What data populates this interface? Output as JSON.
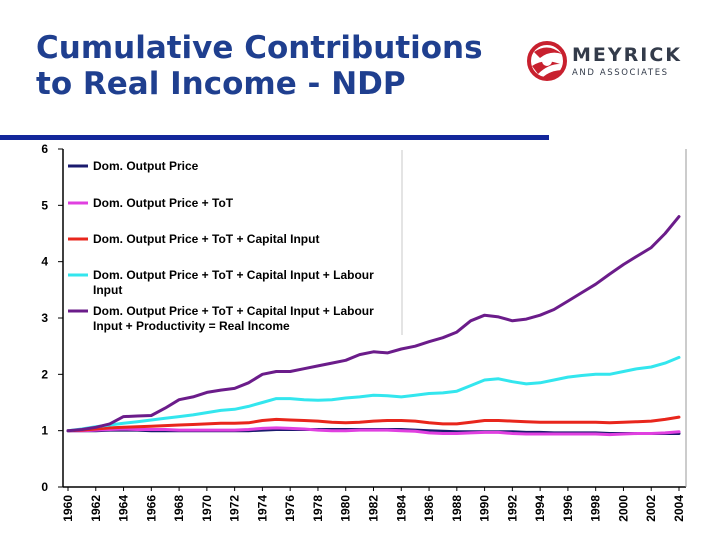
{
  "slide": {
    "title_line1": "Cumulative Contributions",
    "title_line2": "to Real Income - NDP"
  },
  "logo": {
    "name": "MEYRICK",
    "sub": "AND ASSOCIATES",
    "icon": "globe-swirl-icon",
    "accent": "#c8202e"
  },
  "chart_data": {
    "type": "line",
    "title": "",
    "xlabel": "",
    "ylabel": "",
    "ylim": [
      0,
      6
    ],
    "yticks": [
      0,
      1,
      2,
      3,
      4,
      5,
      6
    ],
    "xlim": [
      1960,
      2004
    ],
    "xticks": [
      "1960",
      "1962",
      "1964",
      "1966",
      "1968",
      "1970",
      "1972",
      "1974",
      "1976",
      "1978",
      "1980",
      "1982",
      "1984",
      "1986",
      "1988",
      "1990",
      "1992",
      "1994",
      "1996",
      "1998",
      "2000",
      "2002",
      "2004"
    ],
    "legend_position": "top-left",
    "grid": false,
    "x": [
      1960,
      1961,
      1962,
      1963,
      1964,
      1965,
      1966,
      1967,
      1968,
      1969,
      1970,
      1971,
      1972,
      1973,
      1974,
      1975,
      1976,
      1977,
      1978,
      1979,
      1980,
      1981,
      1982,
      1983,
      1984,
      1985,
      1986,
      1987,
      1988,
      1989,
      1990,
      1991,
      1992,
      1993,
      1994,
      1995,
      1996,
      1997,
      1998,
      1999,
      2000,
      2001,
      2002,
      2003,
      2004
    ],
    "series": [
      {
        "name": "Dom. Output Price",
        "color": "#1a1a6e",
        "values": [
          1.0,
          1.0,
          1.0,
          1.01,
          1.01,
          1.01,
          1.0,
          1.0,
          1.0,
          1.0,
          1.0,
          1.0,
          1.0,
          1.0,
          1.01,
          1.02,
          1.02,
          1.02,
          1.02,
          1.02,
          1.02,
          1.02,
          1.02,
          1.02,
          1.02,
          1.01,
          1.0,
          0.99,
          0.98,
          0.98,
          0.98,
          0.98,
          0.98,
          0.97,
          0.97,
          0.96,
          0.96,
          0.96,
          0.96,
          0.95,
          0.95,
          0.95,
          0.95,
          0.95,
          0.95
        ]
      },
      {
        "name": "Dom. Output Price + ToT",
        "color": "#e040e0",
        "values": [
          1.0,
          1.0,
          1.01,
          1.02,
          1.03,
          1.02,
          1.02,
          1.02,
          1.01,
          1.01,
          1.01,
          1.01,
          1.01,
          1.02,
          1.04,
          1.05,
          1.04,
          1.03,
          1.01,
          1.0,
          1.0,
          1.01,
          1.01,
          1.01,
          1.0,
          0.99,
          0.96,
          0.95,
          0.95,
          0.96,
          0.97,
          0.97,
          0.95,
          0.94,
          0.94,
          0.94,
          0.94,
          0.94,
          0.94,
          0.93,
          0.94,
          0.95,
          0.95,
          0.96,
          0.98
        ]
      },
      {
        "name": "Dom. Output Price + ToT + Capital Input",
        "color": "#e8261c",
        "values": [
          1.0,
          1.01,
          1.03,
          1.05,
          1.06,
          1.07,
          1.08,
          1.09,
          1.1,
          1.11,
          1.12,
          1.13,
          1.13,
          1.14,
          1.18,
          1.2,
          1.19,
          1.18,
          1.17,
          1.15,
          1.14,
          1.15,
          1.17,
          1.18,
          1.18,
          1.17,
          1.14,
          1.12,
          1.12,
          1.15,
          1.18,
          1.18,
          1.17,
          1.16,
          1.15,
          1.15,
          1.15,
          1.15,
          1.15,
          1.14,
          1.15,
          1.16,
          1.17,
          1.2,
          1.24
        ]
      },
      {
        "name": "Dom. Output Price + ToT + Capital Input + Labour Input",
        "color": "#33e6ee",
        "values": [
          1.0,
          1.03,
          1.07,
          1.1,
          1.13,
          1.16,
          1.19,
          1.22,
          1.25,
          1.28,
          1.32,
          1.36,
          1.38,
          1.43,
          1.5,
          1.57,
          1.57,
          1.55,
          1.54,
          1.55,
          1.58,
          1.6,
          1.63,
          1.62,
          1.6,
          1.63,
          1.66,
          1.67,
          1.7,
          1.8,
          1.9,
          1.92,
          1.87,
          1.83,
          1.85,
          1.9,
          1.95,
          1.98,
          2.0,
          2.0,
          2.05,
          2.1,
          2.13,
          2.2,
          2.3
        ]
      },
      {
        "name": "Dom. Output Price + ToT + Capital Input + Labour Input + Productivity = Real Income",
        "color": "#6b1c8a",
        "values": [
          1.0,
          1.02,
          1.06,
          1.12,
          1.25,
          1.26,
          1.27,
          1.4,
          1.55,
          1.6,
          1.68,
          1.72,
          1.75,
          1.85,
          2.0,
          2.05,
          2.05,
          2.1,
          2.15,
          2.2,
          2.25,
          2.35,
          2.4,
          2.38,
          2.45,
          2.5,
          2.58,
          2.65,
          2.75,
          2.95,
          3.05,
          3.02,
          2.95,
          2.98,
          3.05,
          3.15,
          3.3,
          3.45,
          3.6,
          3.78,
          3.95,
          4.1,
          4.25,
          4.5,
          4.8
        ]
      }
    ],
    "legend_lines": [
      [
        "Dom. Output Price"
      ],
      [
        "Dom. Output Price + ToT"
      ],
      [
        "Dom. Output Price + ToT + Capital Input"
      ],
      [
        "Dom. Output Price + ToT + Capital Input + Labour",
        "Input"
      ],
      [
        "Dom. Output Price + ToT + Capital Input + Labour",
        "Input + Productivity = Real Income"
      ]
    ]
  }
}
